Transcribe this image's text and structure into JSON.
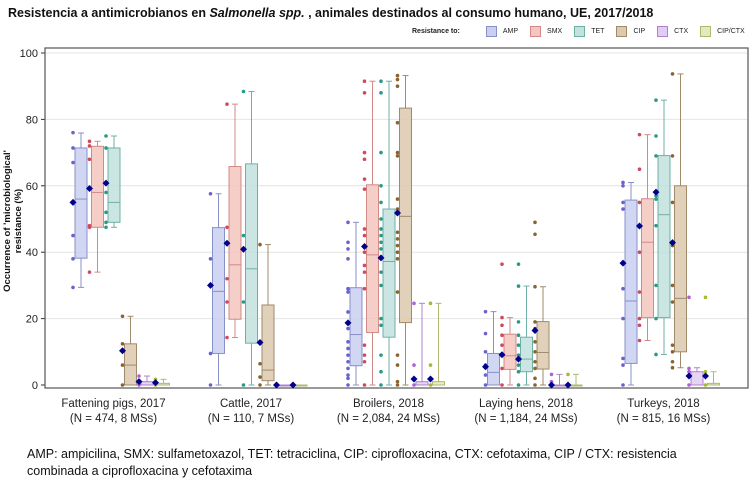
{
  "title": {
    "part1": "Resistencia a antimicrobianos en ",
    "italic": "Salmonella spp.",
    "part2": " , animales destinados al consumo humano,  UE, 2017/2018"
  },
  "caption": "AMP: ampicilina, SMX: sulfametoxazol, TET: tetraciclina, CIP: ciprofloxacina, CTX: cefotaxima, CIP / CTX: resistencia combinada a ciprofloxacina y cefotaxima",
  "chart_data": {
    "type": "box",
    "title": "Resistencia a antimicrobianos en Salmonella spp., animales destinados al consumo humano, UE, 2017/2018",
    "ylabel": "Occurrence of 'microbiological' resistance (%)",
    "xlabel": "",
    "ylim": [
      0,
      100
    ],
    "yticks": [
      "0",
      "20",
      "40",
      "60",
      "80",
      "100"
    ],
    "grid": true,
    "legend": {
      "title": "Resistance to:",
      "placement": "top-right",
      "entries": [
        {
          "name": "AMP",
          "fill": "#c9cff0",
          "stroke": "#8890c8",
          "point": "#6a62d0"
        },
        {
          "name": "SMX",
          "fill": "#f4c6be",
          "stroke": "#d08a88",
          "point": "#d04a5c"
        },
        {
          "name": "TET",
          "fill": "#c2e2dd",
          "stroke": "#6fb0a6",
          "point": "#2a9a86"
        },
        {
          "name": "CIP",
          "fill": "#dcc9ae",
          "stroke": "#a08a6a",
          "point": "#8a6430"
        },
        {
          "name": "CTX",
          "fill": "#e2ccf2",
          "stroke": "#b080d0",
          "point": "#b060d8"
        },
        {
          "name": "CIP/CTX",
          "fill": "#e4e8bc",
          "stroke": "#b0b870",
          "point": "#a8b830"
        }
      ]
    },
    "mean_color": "#00008b",
    "categories": [
      {
        "label": "Fattening pigs, 2017",
        "n": "(N = 474, 8 MSs)"
      },
      {
        "label": "Cattle, 2017",
        "n": "(N = 110, 7 MSs)"
      },
      {
        "label": "Broilers, 2018",
        "n": "(N = 2,084, 24 MSs)"
      },
      {
        "label": "Laying hens, 2018",
        "n": "(N = 1,184, 24 MSs)"
      },
      {
        "label": "Turkeys, 2018",
        "n": "(N = 815, 16 MSs)"
      }
    ],
    "boxes": [
      [
        {
          "min": 29.4,
          "q1": 38.2,
          "median": 56,
          "q3": 71.4,
          "max": 75.9,
          "mean": 55,
          "points": [
            76,
            71.4,
            67,
            45,
            38,
            29.4
          ]
        },
        {
          "min": 34,
          "q1": 47.5,
          "median": 58,
          "q3": 71.9,
          "max": 73.4,
          "mean": 59.2,
          "points": [
            73.4,
            72,
            68,
            48,
            47.5,
            34
          ]
        },
        {
          "min": 47.5,
          "q1": 49,
          "median": 55,
          "q3": 71.4,
          "max": 75,
          "mean": 60.8,
          "points": [
            75,
            71.4,
            58,
            52,
            49,
            47.5
          ]
        },
        {
          "min": 0,
          "q1": 0,
          "median": 6,
          "q3": 12.4,
          "max": 20.7,
          "mean": 10.3,
          "points": [
            20.7,
            12.4,
            6,
            0
          ]
        },
        {
          "min": 0,
          "q1": 0,
          "median": 0,
          "q3": 1,
          "max": 2.7,
          "mean": 1,
          "points": [
            2.7,
            0
          ]
        },
        {
          "min": 0,
          "q1": 0,
          "median": 0,
          "q3": 0.5,
          "max": 1.7,
          "mean": 0.7,
          "points": [
            1.7,
            0
          ]
        }
      ],
      [
        {
          "min": 0,
          "q1": 9.5,
          "median": 28.2,
          "q3": 47.4,
          "max": 57.6,
          "mean": 30,
          "points": [
            57.6,
            38,
            9.5,
            0
          ]
        },
        {
          "min": 14.3,
          "q1": 19.8,
          "median": 36.2,
          "q3": 65.8,
          "max": 84.6,
          "mean": 42.7,
          "points": [
            84.6,
            47.5,
            32,
            25,
            14.3
          ]
        },
        {
          "min": 0,
          "q1": 12.6,
          "median": 35,
          "q3": 66.6,
          "max": 88.4,
          "mean": 40.9,
          "points": [
            88.4,
            45,
            25,
            0
          ]
        },
        {
          "min": 0,
          "q1": 1.3,
          "median": 4.5,
          "q3": 24.1,
          "max": 42.3,
          "mean": 12.8,
          "points": [
            42.3,
            6.4,
            2.4,
            0
          ]
        },
        {
          "min": 0,
          "q1": 0,
          "median": 0,
          "q3": 0,
          "max": 0,
          "mean": 0,
          "points": [
            0
          ]
        },
        {
          "min": 0,
          "q1": 0,
          "median": 0,
          "q3": 0,
          "max": 0,
          "mean": 0,
          "points": [
            0
          ]
        }
      ],
      [
        {
          "min": 0,
          "q1": 5.8,
          "median": 15.2,
          "q3": 29.3,
          "max": 49,
          "mean": 18.7,
          "points": [
            49,
            43,
            41,
            38,
            29,
            28,
            22,
            17,
            13,
            11,
            9,
            7,
            5,
            3,
            2,
            0
          ]
        },
        {
          "min": 0,
          "q1": 15.8,
          "median": 39.2,
          "q3": 60.3,
          "max": 91.5,
          "mean": 41.7,
          "points": [
            91.5,
            88,
            70,
            68,
            62,
            59,
            47,
            45,
            42,
            40,
            36,
            34,
            29,
            12,
            9,
            7,
            0
          ]
        },
        {
          "min": 0,
          "q1": 14.4,
          "median": 37.2,
          "q3": 53,
          "max": 91.5,
          "mean": 38.3,
          "points": [
            91.5,
            88,
            70,
            60,
            55,
            50,
            47,
            45,
            43,
            41,
            34,
            30,
            20,
            18,
            9,
            4,
            0
          ]
        },
        {
          "min": 0,
          "q1": 18.8,
          "median": 50.8,
          "q3": 83.4,
          "max": 93.2,
          "mean": 51.8,
          "points": [
            93.2,
            92,
            90,
            79,
            70,
            69,
            56,
            53,
            46,
            44,
            42,
            40,
            38,
            28,
            9,
            6,
            1,
            0
          ]
        },
        {
          "min": 0,
          "q1": 0,
          "median": 0,
          "q3": 1,
          "max": 24.6,
          "mean": 1.8,
          "points": [
            24.6,
            6,
            2,
            0
          ]
        },
        {
          "min": 0,
          "q1": 0,
          "median": 0,
          "q3": 1,
          "max": 24.6,
          "mean": 1.8,
          "points": [
            24.6,
            6,
            2,
            0
          ]
        }
      ],
      [
        {
          "min": 0,
          "q1": 0,
          "median": 3.8,
          "q3": 9.5,
          "max": 22.1,
          "mean": 5.5,
          "points": [
            22.1,
            15.5,
            10,
            6,
            3,
            0
          ]
        },
        {
          "min": 0,
          "q1": 4.7,
          "median": 8.8,
          "q3": 15.3,
          "max": 20.3,
          "mean": 9.1,
          "points": [
            36.4,
            20.3,
            18,
            15,
            12,
            9,
            5,
            0
          ]
        },
        {
          "min": 0,
          "q1": 4,
          "median": 7.8,
          "q3": 14.4,
          "max": 29.8,
          "mean": 7.8,
          "points": [
            36.4,
            29.8,
            19,
            15,
            12,
            9,
            6,
            4,
            0
          ]
        },
        {
          "min": 0,
          "q1": 4.8,
          "median": 9.8,
          "q3": 19.1,
          "max": 29.6,
          "mean": 16.4,
          "points": [
            49,
            45.4,
            29.6,
            19,
            17,
            13,
            10,
            7,
            5,
            2,
            0
          ]
        },
        {
          "min": 0,
          "q1": 0,
          "median": 0,
          "q3": 0,
          "max": 3.2,
          "mean": 0,
          "points": [
            3.2,
            1,
            0
          ]
        },
        {
          "min": 0,
          "q1": 0,
          "median": 0,
          "q3": 0,
          "max": 3.2,
          "mean": 0,
          "points": [
            3.2,
            0
          ]
        }
      ],
      [
        {
          "min": 0,
          "q1": 6.5,
          "median": 25.3,
          "q3": 55.7,
          "max": 61,
          "mean": 36.7,
          "points": [
            61,
            60,
            55,
            53,
            29,
            20,
            8,
            6,
            0
          ]
        },
        {
          "min": 13.4,
          "q1": 20.3,
          "median": 43,
          "q3": 56.1,
          "max": 75.4,
          "mean": 47.9,
          "points": [
            75.4,
            65,
            55,
            40,
            28,
            20,
            18,
            13.4
          ]
        },
        {
          "min": 9.2,
          "q1": 20.3,
          "median": 51.3,
          "q3": 69.1,
          "max": 85.8,
          "mean": 58.1,
          "points": [
            85.8,
            75,
            69,
            57,
            56,
            48,
            30,
            20,
            9.2
          ]
        },
        {
          "min": 5.2,
          "q1": 10,
          "median": 26.1,
          "q3": 60,
          "max": 93.7,
          "mean": 42.9,
          "points": [
            93.7,
            69,
            55,
            42,
            30,
            25,
            12,
            10,
            7,
            5.2
          ]
        },
        {
          "min": 0,
          "q1": 0,
          "median": 0,
          "q3": 4,
          "max": 5.2,
          "mean": 2.7,
          "points": [
            26.4,
            5,
            4,
            0
          ]
        },
        {
          "min": 0,
          "q1": 0,
          "median": 0,
          "q3": 0.5,
          "max": 4,
          "mean": 2.7,
          "points": [
            26.4,
            4,
            0
          ]
        }
      ]
    ]
  }
}
